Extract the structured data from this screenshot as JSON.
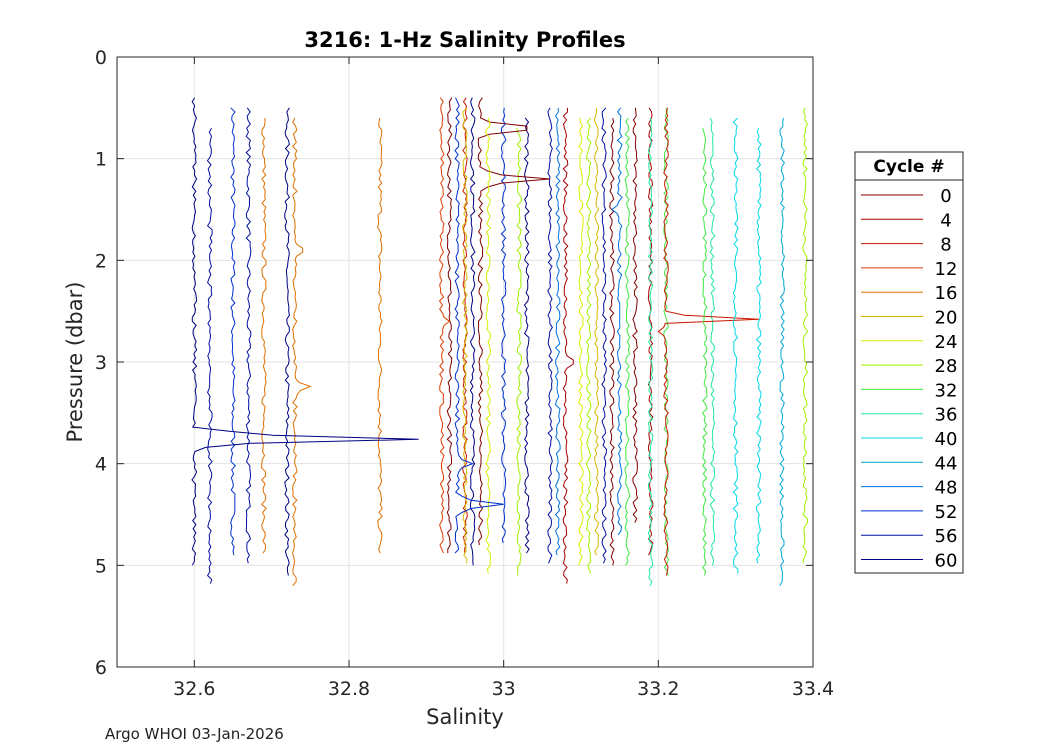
{
  "chart_data": {
    "type": "line",
    "title": "3216: 1-Hz Salinity Profiles",
    "xlabel": "Salinity",
    "ylabel": "Pressure (dbar)",
    "xlim": [
      32.5,
      33.4
    ],
    "ylim": [
      0,
      6
    ],
    "y_reversed": true,
    "grid": true,
    "x_ticks": [
      "32.6",
      "32.8",
      "33",
      "33.2",
      "33.4"
    ],
    "x_tick_values": [
      32.6,
      32.8,
      33.0,
      33.2,
      33.4
    ],
    "y_ticks": [
      "0",
      "1",
      "2",
      "3",
      "4",
      "5",
      "6"
    ],
    "y_tick_values": [
      0,
      1,
      2,
      3,
      4,
      5,
      6
    ],
    "legend_title": "Cycle #",
    "legend_position": "right",
    "legend": [
      {
        "label": "0",
        "color": "#800000"
      },
      {
        "label": "4",
        "color": "#a80000"
      },
      {
        "label": "8",
        "color": "#c81800"
      },
      {
        "label": "12",
        "color": "#e03c00"
      },
      {
        "label": "16",
        "color": "#e07000"
      },
      {
        "label": "20",
        "color": "#d8b800"
      },
      {
        "label": "24",
        "color": "#d8f000"
      },
      {
        "label": "28",
        "color": "#a0f000"
      },
      {
        "label": "32",
        "color": "#40e840"
      },
      {
        "label": "36",
        "color": "#20e8a0"
      },
      {
        "label": "40",
        "color": "#00d8e8"
      },
      {
        "label": "44",
        "color": "#00a8d8"
      },
      {
        "label": "48",
        "color": "#0070e0"
      },
      {
        "label": "52",
        "color": "#0030d0"
      },
      {
        "label": "56",
        "color": "#0010a0"
      },
      {
        "label": "60",
        "color": "#000080"
      }
    ],
    "profiles": [
      {
        "cycle": 0,
        "color": "#800000",
        "s": 32.97,
        "ptop": 0.4,
        "pbot": 4.8,
        "excursions": [
          [
            1.2,
            33.06
          ],
          [
            0.7,
            33.03
          ]
        ]
      },
      {
        "cycle": 4,
        "color": "#a80000",
        "s": 33.08,
        "ptop": 0.5,
        "pbot": 5.2,
        "excursions": [
          [
            3.0,
            33.09
          ]
        ]
      },
      {
        "cycle": 8,
        "color": "#c81800",
        "s": 33.21,
        "ptop": 0.5,
        "pbot": 5.1,
        "excursions": [
          [
            2.6,
            33.33
          ],
          [
            2.7,
            33.2
          ]
        ]
      },
      {
        "cycle": 12,
        "color": "#e03c00",
        "s": 32.92,
        "ptop": 0.4,
        "pbot": 4.9,
        "excursions": [
          [
            2.6,
            32.93
          ]
        ]
      },
      {
        "cycle": 16,
        "color": "#e07000",
        "s": 32.73,
        "ptop": 0.6,
        "pbot": 5.2,
        "excursions": [
          [
            3.25,
            32.75
          ],
          [
            1.9,
            32.74
          ]
        ]
      },
      {
        "cycle": 20,
        "color": "#d8b800",
        "s": 32.95,
        "ptop": 0.5,
        "pbot": 5.0,
        "excursions": []
      },
      {
        "cycle": 24,
        "color": "#d8f000",
        "s": 32.98,
        "ptop": 0.6,
        "pbot": 5.1,
        "excursions": []
      },
      {
        "cycle": 28,
        "color": "#a0f000",
        "s": 33.11,
        "ptop": 0.6,
        "pbot": 5.1,
        "excursions": []
      },
      {
        "cycle": 32,
        "color": "#40e840",
        "s": 33.26,
        "ptop": 0.7,
        "pbot": 5.1,
        "excursions": []
      },
      {
        "cycle": 36,
        "color": "#20e8a0",
        "s": 33.19,
        "ptop": 0.6,
        "pbot": 5.2,
        "excursions": []
      },
      {
        "cycle": 40,
        "color": "#00d8e8",
        "s": 33.3,
        "ptop": 0.6,
        "pbot": 5.1,
        "excursions": []
      },
      {
        "cycle": 44,
        "color": "#00a8d8",
        "s": 33.36,
        "ptop": 0.6,
        "pbot": 5.2,
        "excursions": []
      },
      {
        "cycle": 48,
        "color": "#0070e0",
        "s": 33.15,
        "ptop": 0.5,
        "pbot": 4.7,
        "excursions": [
          [
            2.5,
            33.15
          ],
          [
            1.5,
            33.14
          ]
        ]
      },
      {
        "cycle": 52,
        "color": "#0030d0",
        "s": 32.94,
        "ptop": 0.4,
        "pbot": 4.9,
        "excursions": [
          [
            4.4,
            33.0
          ],
          [
            4.0,
            32.96
          ]
        ]
      },
      {
        "cycle": 56,
        "color": "#0010a0",
        "s": 32.62,
        "ptop": 0.7,
        "pbot": 5.2,
        "excursions": []
      },
      {
        "cycle": 60,
        "color": "#000080",
        "s": 32.6,
        "ptop": 0.4,
        "pbot": 5.0,
        "excursions": [
          [
            3.75,
            32.89
          ]
        ]
      }
    ],
    "extra_traces": [
      {
        "color": "#0030d0",
        "s": 32.65,
        "ptop": 0.5,
        "pbot": 4.9
      },
      {
        "color": "#0010a0",
        "s": 32.67,
        "ptop": 0.5,
        "pbot": 5.0
      },
      {
        "color": "#000080",
        "s": 32.72,
        "ptop": 0.5,
        "pbot": 5.1
      },
      {
        "color": "#e07000",
        "s": 32.69,
        "ptop": 0.6,
        "pbot": 4.9
      },
      {
        "color": "#e07000",
        "s": 32.84,
        "ptop": 0.6,
        "pbot": 4.9
      },
      {
        "color": "#c81800",
        "s": 32.95,
        "ptop": 0.4,
        "pbot": 4.9
      },
      {
        "color": "#800000",
        "s": 32.93,
        "ptop": 0.4,
        "pbot": 4.9
      },
      {
        "color": "#000080",
        "s": 32.96,
        "ptop": 0.4,
        "pbot": 5.0
      },
      {
        "color": "#0030d0",
        "s": 33.0,
        "ptop": 0.5,
        "pbot": 4.8
      },
      {
        "color": "#000080",
        "s": 33.03,
        "ptop": 0.6,
        "pbot": 4.9
      },
      {
        "color": "#0010a0",
        "s": 33.06,
        "ptop": 0.5,
        "pbot": 5.0
      },
      {
        "color": "#0070e0",
        "s": 33.07,
        "ptop": 0.5,
        "pbot": 4.9
      },
      {
        "color": "#a0f000",
        "s": 33.02,
        "ptop": 0.7,
        "pbot": 5.1
      },
      {
        "color": "#d8f000",
        "s": 33.1,
        "ptop": 0.6,
        "pbot": 5.0
      },
      {
        "color": "#d8b800",
        "s": 33.12,
        "ptop": 0.5,
        "pbot": 4.9
      },
      {
        "color": "#800000",
        "s": 33.14,
        "ptop": 0.6,
        "pbot": 5.0
      },
      {
        "color": "#0010a0",
        "s": 33.13,
        "ptop": 0.5,
        "pbot": 5.0
      },
      {
        "color": "#40e840",
        "s": 33.16,
        "ptop": 0.6,
        "pbot": 5.0
      },
      {
        "color": "#40e840",
        "s": 33.21,
        "ptop": 0.5,
        "pbot": 5.1
      },
      {
        "color": "#a80000",
        "s": 33.19,
        "ptop": 0.5,
        "pbot": 4.9
      },
      {
        "color": "#20e8a0",
        "s": 33.27,
        "ptop": 0.6,
        "pbot": 5.0
      },
      {
        "color": "#00d8e8",
        "s": 33.33,
        "ptop": 0.7,
        "pbot": 5.0
      },
      {
        "color": "#a0f000",
        "s": 33.39,
        "ptop": 0.5,
        "pbot": 5.0
      },
      {
        "color": "#800000",
        "s": 33.17,
        "ptop": 0.5,
        "pbot": 4.6
      }
    ]
  },
  "footer": {
    "credit": "Argo WHOI 03-Jan-2026"
  }
}
